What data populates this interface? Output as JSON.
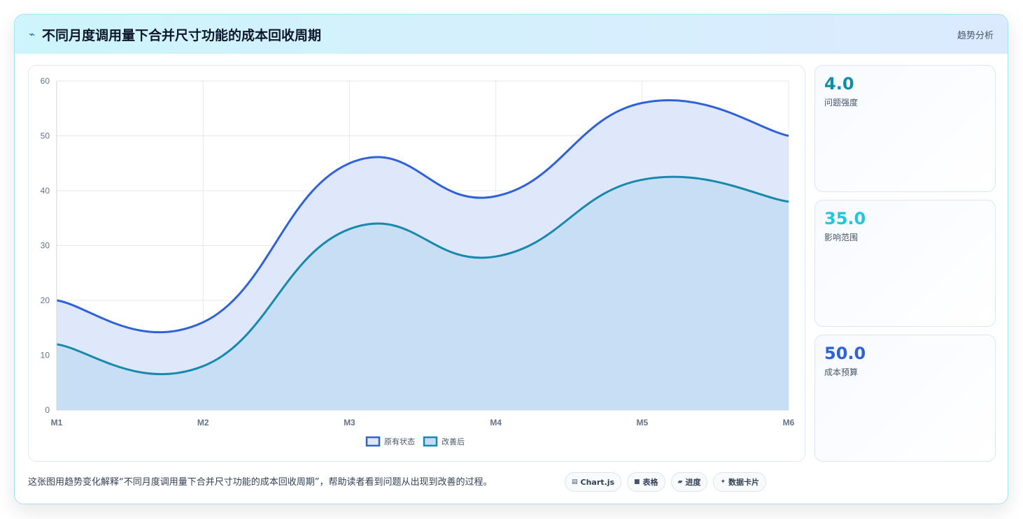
{
  "header": {
    "icon": "lightning-icon",
    "title": "不同月度调用量下合并尺寸功能的成本回收周期",
    "link": "趋势分析"
  },
  "chart_data": {
    "type": "area",
    "categories": [
      "M1",
      "M2",
      "M3",
      "M4",
      "M5",
      "M6"
    ],
    "series": [
      {
        "name": "原有状态",
        "values": [
          20,
          16,
          45,
          39,
          56,
          50
        ],
        "color": "#2f62d8",
        "fill": "#dfe8fb"
      },
      {
        "name": "改善后",
        "values": [
          12,
          8,
          33,
          28,
          42,
          38
        ],
        "color": "#1789ad",
        "fill": "#c3dcf2"
      }
    ],
    "ylim": [
      0,
      60
    ],
    "yticks": [
      0,
      10,
      20,
      30,
      40,
      50,
      60
    ],
    "grid": true,
    "legend": "bottom"
  },
  "stats": [
    {
      "value": "4.0",
      "label": "问题强度",
      "color": "#0e8fa8"
    },
    {
      "value": "35.0",
      "label": "影响范围",
      "color": "#22c7dc"
    },
    {
      "value": "50.0",
      "label": "成本预算",
      "color": "#2f62d8"
    }
  ],
  "footer": {
    "text": "这张图用趋势变化解释“不同月度调用量下合并尺寸功能的成本回收周期”，帮助读者看到问题从出现到改善的过程。",
    "chips": [
      {
        "icon": "chart-icon",
        "glyph": "▤",
        "label": "Chart.js"
      },
      {
        "icon": "table-icon",
        "glyph": "■",
        "label": "表格"
      },
      {
        "icon": "progress-icon",
        "glyph": "▰",
        "label": "进度"
      },
      {
        "icon": "sparkle-icon",
        "glyph": "✦",
        "label": "数据卡片"
      }
    ]
  }
}
